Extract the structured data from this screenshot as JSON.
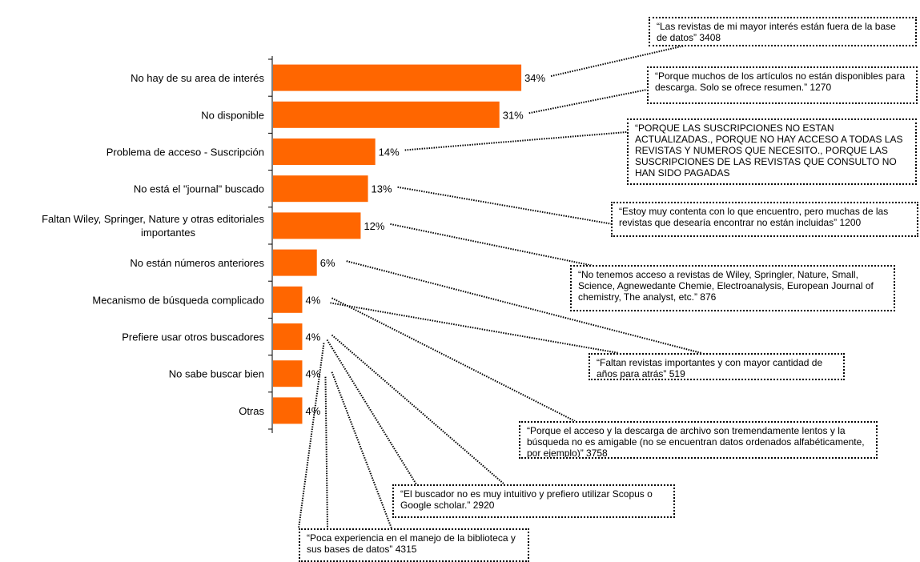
{
  "chart_data": {
    "type": "bar",
    "orientation": "horizontal",
    "categories": [
      "No hay de su area de interés",
      "No disponible",
      "Problema de acceso - Suscripción",
      "No está el \"journal\" buscado",
      "Faltan  Wiley, Springer, Nature y otras editoriales importantes",
      "No están números anteriores",
      "Mecanismo de búsqueda complicado",
      "Prefiere usar otros buscadores",
      "No sabe buscar bien",
      "Otras"
    ],
    "values": [
      34,
      31,
      14,
      13,
      12,
      6,
      4,
      4,
      4,
      4
    ],
    "value_labels": [
      "34%",
      "31%",
      "14%",
      "13%",
      "12%",
      "6%",
      "4%",
      "4%",
      "4%",
      "4%"
    ],
    "bar_color": "#ff6600",
    "xlim": [
      0,
      40
    ],
    "grid": false
  },
  "callouts": [
    {
      "text": "“Las revistas de mi mayor interés están fuera de la base de datos”  3408",
      "bar": 0
    },
    {
      "text": "“Porque muchos de los artículos no están disponibles para descarga. Solo se ofrece resumen.”  1270",
      "bar": 1
    },
    {
      "text": "“PORQUE LAS SUSCRIPCIONES NO ESTAN ACTUALIZADAS., PORQUE NO HAY ACCESO A TODAS LAS REVISTAS Y NUMEROS QUE NECESITO., PORQUE LAS SUSCRIPCIONES DE LAS REVISTAS QUE CONSULTO NO HAN SIDO PAGADAS",
      "bar": 2
    },
    {
      "text": "“Estoy muy contenta con lo que encuentro, pero muchas de las revistas que desearía encontrar no están incluidas”  1200",
      "bar": 3
    },
    {
      "text": "“No tenemos acceso a revistas de Wiley, Springler, Nature, Small, Science, Agnewedante Chemie, Electroanalysis, European Journal of chemistry, The analyst, etc.”  876",
      "bar": 4
    },
    {
      "text": "“Faltan revistas importantes y con mayor cantidad de años para atrás”  519",
      "bar": 5
    },
    {
      "text": "“Porque el acceso y la descarga de archivo son tremendamente lentos y la búsqueda no es amigable (no se encuentran datos ordenados alfabéticamente, por ejemplo)”  3758",
      "bar": 6
    },
    {
      "text": "“El buscador no es muy intuitivo y prefiero utilizar Scopus o Google scholar.”  2920",
      "bar": 7
    },
    {
      "text": "“Poca experiencia en el manejo de la biblioteca y sus bases de datos”  4315",
      "bar": 8
    }
  ]
}
